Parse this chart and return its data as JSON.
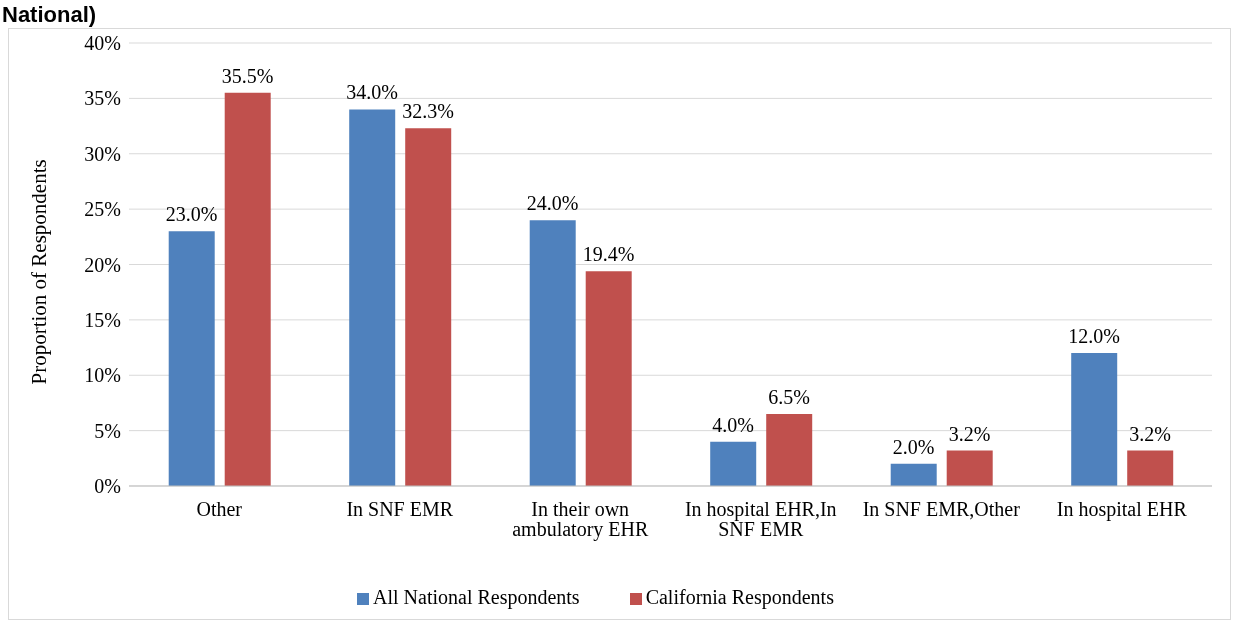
{
  "chart_data": {
    "type": "bar",
    "title": "National)",
    "ylabel": "Proportion of Respondents",
    "categories": [
      "Other",
      "In SNF EMR",
      "In their own ambulatory EHR",
      "In hospital EHR,In SNF EMR",
      "In SNF EMR,Other",
      "In hospital EHR"
    ],
    "series": [
      {
        "name": "All National Respondents",
        "color": "#4f81bd",
        "values": [
          23.0,
          34.0,
          24.0,
          4.0,
          2.0,
          12.0
        ],
        "value_labels": [
          "23.0%",
          "34.0%",
          "24.0%",
          "4.0%",
          "2.0%",
          "12.0%"
        ]
      },
      {
        "name": "California Respondents",
        "color": "#c0504d",
        "values": [
          35.5,
          32.3,
          19.4,
          6.5,
          3.2,
          3.2
        ],
        "value_labels": [
          "35.5%",
          "32.3%",
          "19.4%",
          "6.5%",
          "3.2%",
          "3.2%"
        ]
      }
    ],
    "ylim": [
      0,
      40
    ],
    "yticks": [
      {
        "value": 0,
        "label": "0%"
      },
      {
        "value": 5,
        "label": "5%"
      },
      {
        "value": 10,
        "label": "10%"
      },
      {
        "value": 15,
        "label": "15%"
      },
      {
        "value": 20,
        "label": "20%"
      },
      {
        "value": 25,
        "label": "25%"
      },
      {
        "value": 30,
        "label": "30%"
      },
      {
        "value": 35,
        "label": "35%"
      },
      {
        "value": 40,
        "label": "40%"
      }
    ],
    "grid": "y",
    "legend": "bottom"
  }
}
